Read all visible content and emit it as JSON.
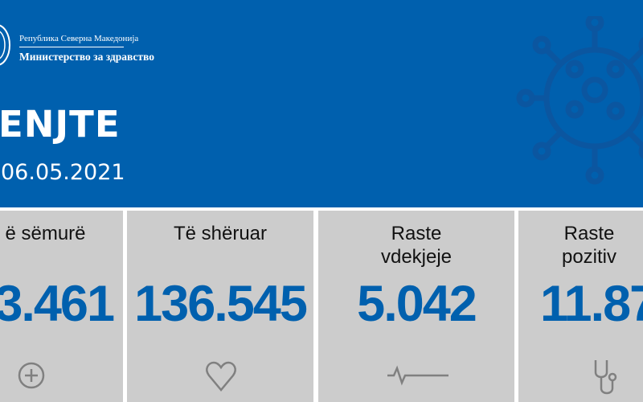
{
  "header": {
    "republic": "Република Северна Македонија",
    "ministry": "Министерство за здравство",
    "day": "ENJTE",
    "date": "06.05.2021"
  },
  "cards": [
    {
      "label": "ë sëmurë",
      "value": "3.461",
      "icon": "plus-circle-icon"
    },
    {
      "label": "Të shëruar",
      "value": "136.545",
      "icon": "heart-icon"
    },
    {
      "label": "Raste\nvdekjeje",
      "label_lines": [
        "Raste",
        "vdekjeje"
      ],
      "value": "5.042",
      "icon": "pulse-line-icon"
    },
    {
      "label_lines": [
        "Raste",
        "pozitiv"
      ],
      "value": "11.87",
      "icon": "stethoscope-icon"
    }
  ],
  "colors": {
    "brand_blue": "#0060ae",
    "card_gray": "#cccccc",
    "icon_gray": "#808080"
  }
}
